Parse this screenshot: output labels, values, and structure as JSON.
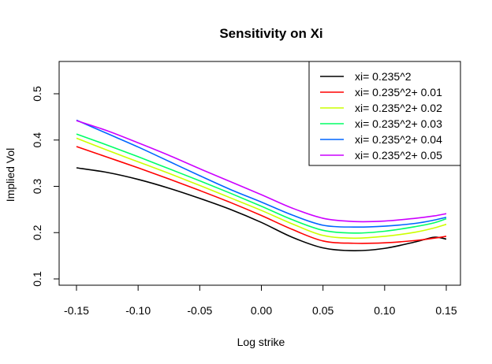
{
  "chart_data": {
    "type": "line",
    "title": "Sensitivity on Xi",
    "xlabel": "Log strike",
    "ylabel": "Implied Vol",
    "xlim": [
      -0.16,
      0.16
    ],
    "ylim": [
      0.09,
      0.55
    ],
    "xticks": [
      -0.15,
      -0.1,
      -0.05,
      0.0,
      0.05,
      0.1,
      0.15
    ],
    "xtick_labels": [
      "-0.15",
      "-0.10",
      "-0.05",
      "0.00",
      "0.05",
      "0.10",
      "0.15"
    ],
    "yticks": [
      0.1,
      0.2,
      0.3,
      0.4,
      0.5
    ],
    "ytick_labels": [
      "0.1",
      "0.2",
      "0.3",
      "0.4",
      "0.5"
    ],
    "grid": false,
    "legend_position": "top-right",
    "x": [
      -0.15,
      -0.125,
      -0.1,
      -0.075,
      -0.05,
      -0.025,
      0.0,
      0.025,
      0.05,
      0.075,
      0.1,
      0.125,
      0.14,
      0.15
    ],
    "series": [
      {
        "name": "xi= 0.235^2",
        "color": "#000000",
        "values": [
          0.34,
          0.33,
          0.315,
          0.296,
          0.274,
          0.25,
          0.222,
          0.19,
          0.167,
          0.161,
          0.166,
          0.18,
          0.19,
          0.186
        ]
      },
      {
        "name": "xi= 0.235^2+ 0.01",
        "color": "#ff0000",
        "values": [
          0.386,
          0.363,
          0.34,
          0.316,
          0.291,
          0.265,
          0.237,
          0.207,
          0.182,
          0.177,
          0.178,
          0.183,
          0.188,
          0.192
        ]
      },
      {
        "name": "xi= 0.235^2+ 0.02",
        "color": "#ccff00",
        "values": [
          0.404,
          0.378,
          0.353,
          0.328,
          0.302,
          0.275,
          0.248,
          0.219,
          0.194,
          0.188,
          0.192,
          0.201,
          0.21,
          0.218
        ]
      },
      {
        "name": "xi= 0.235^2+ 0.03",
        "color": "#00ff66",
        "values": [
          0.413,
          0.389,
          0.364,
          0.338,
          0.312,
          0.285,
          0.257,
          0.228,
          0.205,
          0.199,
          0.203,
          0.213,
          0.221,
          0.23
        ]
      },
      {
        "name": "xi= 0.235^2+ 0.04",
        "color": "#0066ff",
        "values": [
          0.443,
          0.414,
          0.385,
          0.354,
          0.323,
          0.293,
          0.266,
          0.238,
          0.216,
          0.212,
          0.214,
          0.22,
          0.227,
          0.233
        ]
      },
      {
        "name": "xi= 0.235^2+ 0.05",
        "color": "#cc00ff",
        "values": [
          0.442,
          0.42,
          0.394,
          0.367,
          0.338,
          0.31,
          0.282,
          0.253,
          0.231,
          0.224,
          0.225,
          0.231,
          0.236,
          0.241
        ]
      }
    ]
  }
}
